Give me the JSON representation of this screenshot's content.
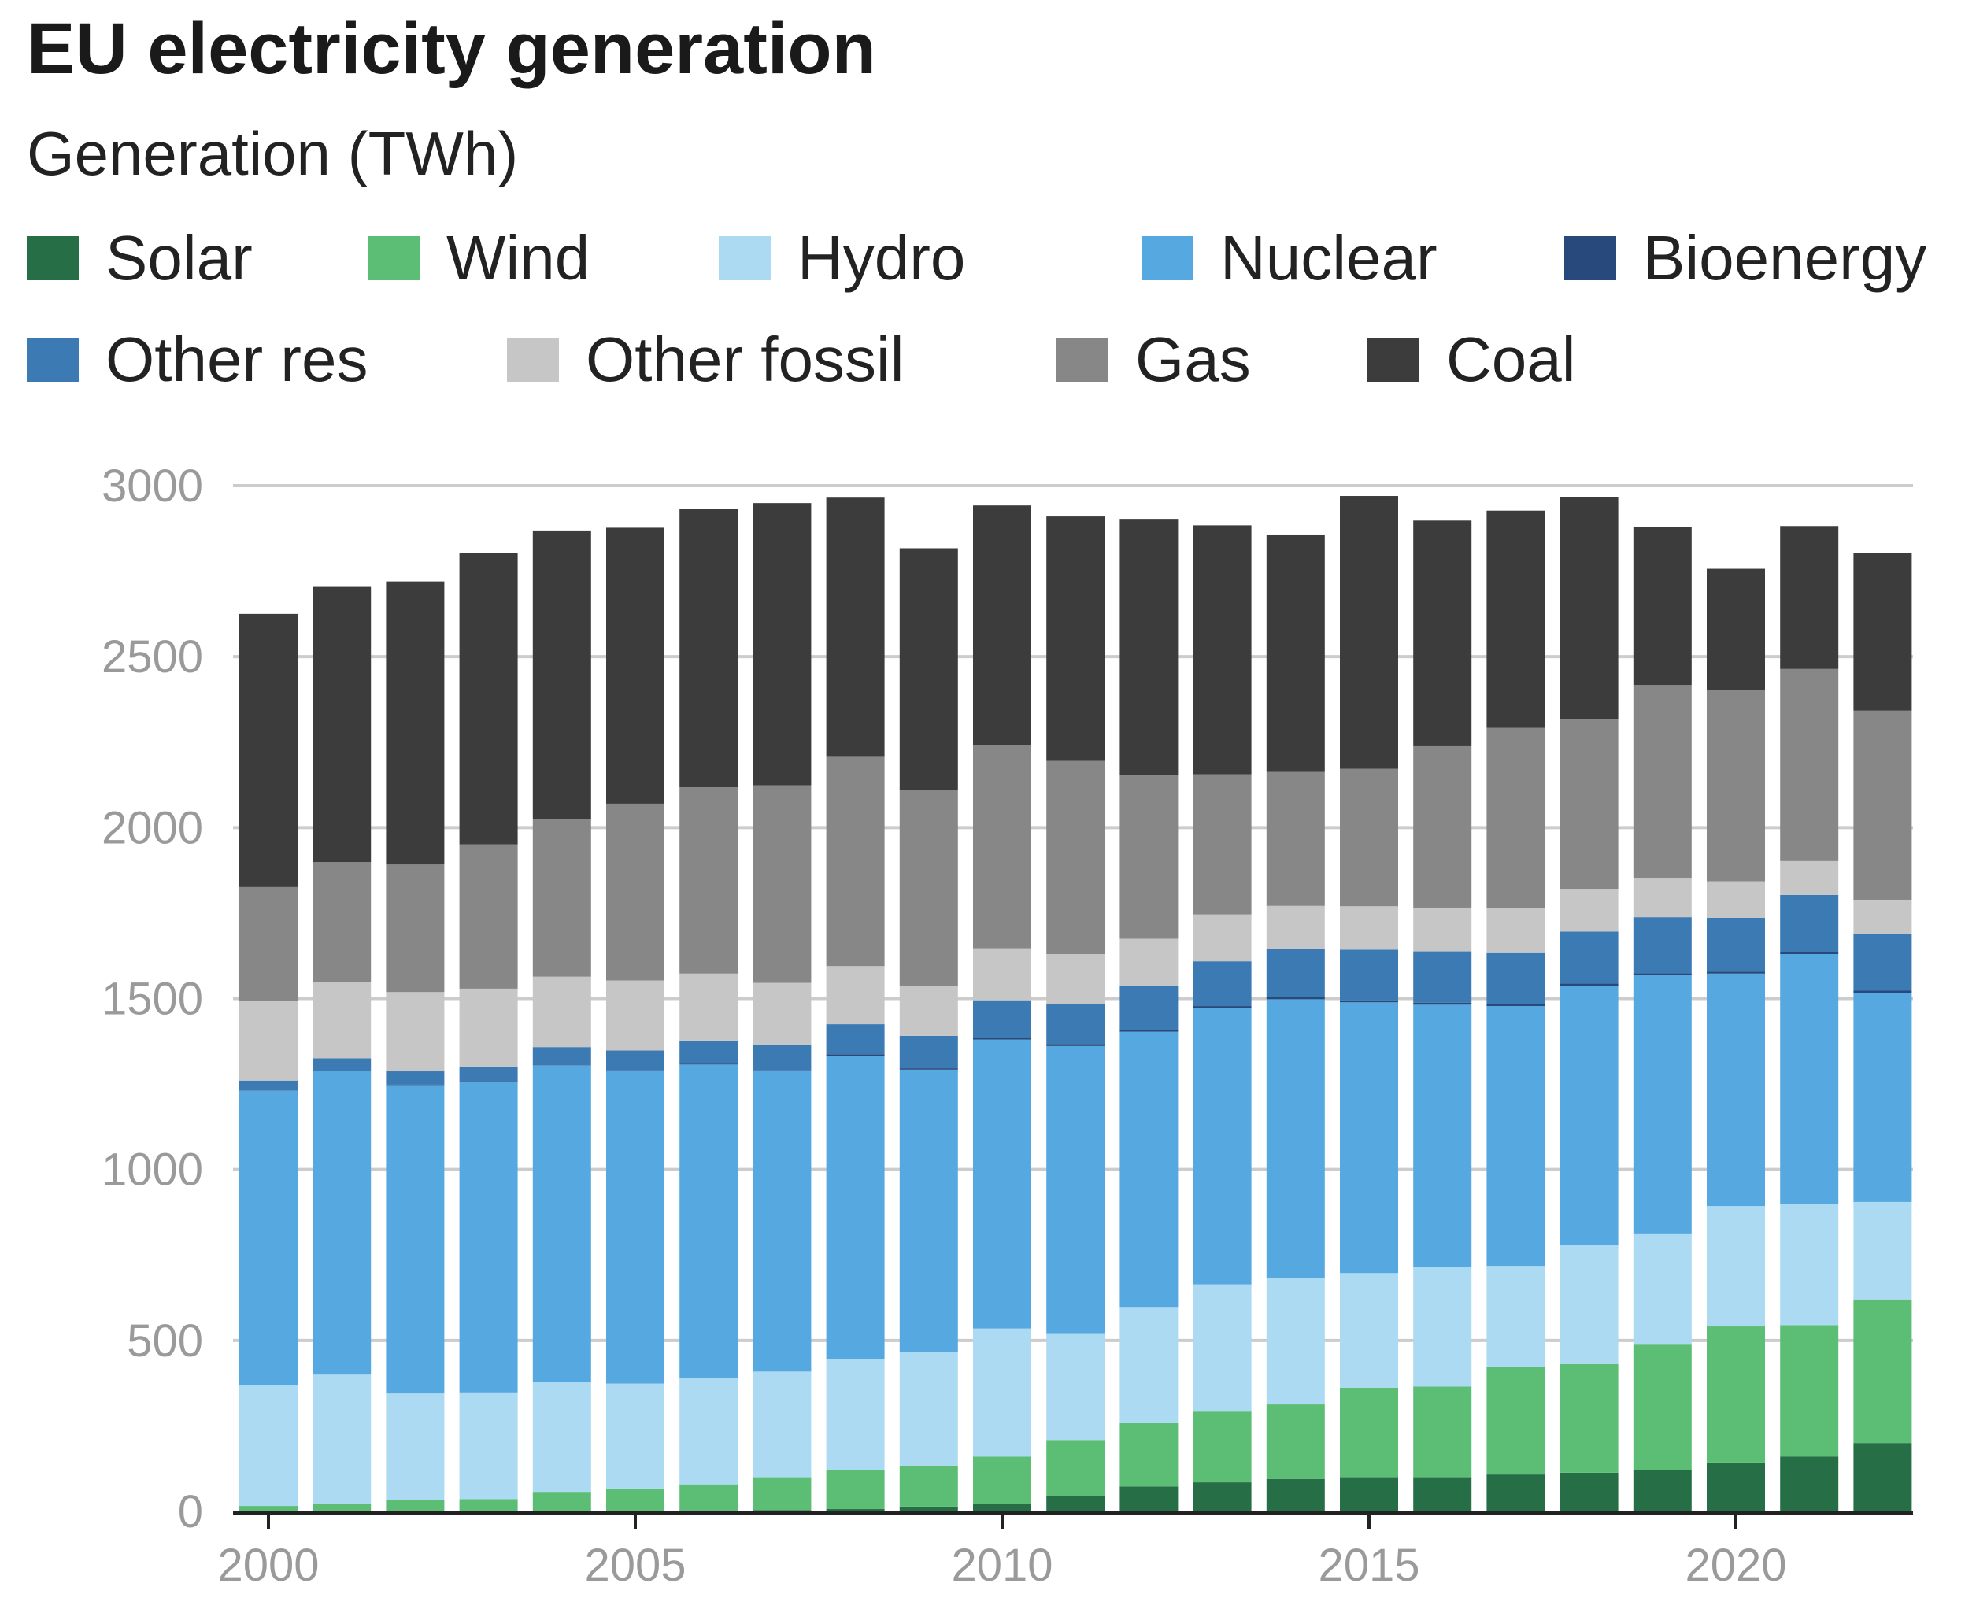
{
  "title": "EU electricity generation",
  "subtitle": "Generation (TWh)",
  "colors": {
    "solar": "#266f46",
    "wind": "#5cbe75",
    "hydro": "#acdaf2",
    "nuclear": "#56a9e0",
    "bioenergy": "#27497c",
    "other_res": "#3c7ab3",
    "other_fossil": "#c6c6c6",
    "gas": "#878787",
    "coal": "#3c3c3c",
    "grid": "#cccccc",
    "axis": "#222222",
    "tick_text": "#9a9a9a"
  },
  "legend": [
    {
      "key": "solar",
      "label": "Solar"
    },
    {
      "key": "wind",
      "label": "Wind"
    },
    {
      "key": "hydro",
      "label": "Hydro"
    },
    {
      "key": "nuclear",
      "label": "Nuclear"
    },
    {
      "key": "bioenergy",
      "label": "Bioenergy"
    },
    {
      "key": "other_res",
      "label": "Other res"
    },
    {
      "key": "other_fossil",
      "label": "Other fossil"
    },
    {
      "key": "gas",
      "label": "Gas"
    },
    {
      "key": "coal",
      "label": "Coal"
    }
  ],
  "chart_data": {
    "type": "bar",
    "stacked": true,
    "title": "EU electricity generation",
    "ylabel": "Generation (TWh)",
    "xlabel": "",
    "ylim": [
      0,
      3000
    ],
    "yticks": [
      0,
      500,
      1000,
      1500,
      2000,
      2500,
      3000
    ],
    "xticks": [
      2000,
      2005,
      2010,
      2015,
      2020
    ],
    "grid": true,
    "legend_position": "top",
    "categories": [
      2000,
      2001,
      2002,
      2003,
      2004,
      2005,
      2006,
      2007,
      2008,
      2009,
      2010,
      2011,
      2012,
      2013,
      2014,
      2015,
      2016,
      2017,
      2018,
      2019,
      2020,
      2021,
      2022
    ],
    "series": [
      {
        "key": "solar",
        "name": "Solar",
        "values": [
          0,
          0,
          0,
          0,
          1,
          1,
          3,
          4,
          7,
          14,
          23,
          45,
          73,
          85,
          95,
          100,
          100,
          108,
          113,
          120,
          143,
          160,
          200
        ]
      },
      {
        "key": "wind",
        "name": "Wind",
        "values": [
          16,
          23,
          33,
          36,
          54,
          66,
          76,
          96,
          113,
          120,
          137,
          164,
          185,
          207,
          218,
          262,
          265,
          315,
          318,
          370,
          398,
          385,
          420
        ]
      },
      {
        "key": "hydro",
        "name": "Hydro",
        "values": [
          354,
          377,
          312,
          312,
          324,
          307,
          312,
          309,
          325,
          333,
          375,
          310,
          340,
          372,
          370,
          335,
          350,
          295,
          347,
          323,
          352,
          355,
          285
        ]
      },
      {
        "key": "nuclear",
        "name": "Nuclear",
        "values": [
          860,
          888,
          902,
          909,
          925,
          914,
          916,
          878,
          888,
          825,
          845,
          842,
          805,
          808,
          815,
          792,
          767,
          760,
          760,
          755,
          680,
          730,
          612
        ]
      },
      {
        "key": "bioenergy",
        "name": "Bioenergy",
        "values": [
          1,
          1,
          1,
          1,
          1,
          2,
          2,
          3,
          4,
          4,
          5,
          6,
          6,
          6,
          6,
          6,
          6,
          6,
          6,
          6,
          6,
          6,
          6
        ]
      },
      {
        "key": "other_res",
        "name": "Other res",
        "values": [
          29,
          36,
          39,
          41,
          53,
          58,
          68,
          74,
          88,
          95,
          110,
          118,
          128,
          131,
          142,
          148,
          150,
          149,
          152,
          164,
          157,
          167,
          166
        ]
      },
      {
        "key": "other_fossil",
        "name": "Other fossil",
        "values": [
          233,
          223,
          232,
          230,
          206,
          205,
          196,
          182,
          170,
          145,
          152,
          145,
          138,
          137,
          125,
          127,
          128,
          131,
          125,
          113,
          107,
          99,
          100
        ]
      },
      {
        "key": "gas",
        "name": "Gas",
        "values": [
          333,
          351,
          373,
          422,
          462,
          517,
          545,
          578,
          612,
          573,
          595,
          565,
          480,
          410,
          392,
          402,
          472,
          528,
          495,
          566,
          558,
          562,
          553
        ]
      },
      {
        "key": "coal",
        "name": "Coal",
        "values": [
          799,
          805,
          828,
          851,
          843,
          807,
          815,
          825,
          758,
          708,
          700,
          715,
          748,
          728,
          692,
          798,
          660,
          635,
          650,
          461,
          356,
          418,
          460
        ]
      }
    ]
  }
}
